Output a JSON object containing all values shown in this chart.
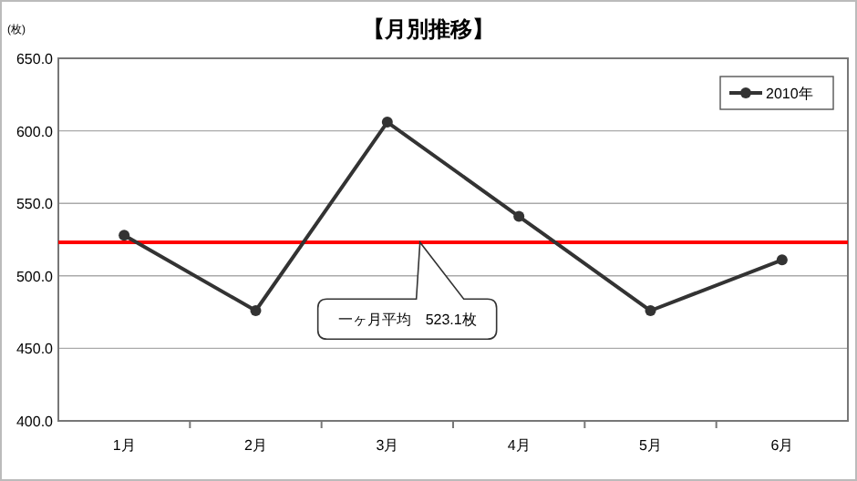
{
  "chart_data": {
    "type": "line",
    "title": "【月別推移】",
    "ylabel": "(枚)",
    "categories": [
      "1月",
      "2月",
      "3月",
      "4月",
      "5月",
      "6月"
    ],
    "series": [
      {
        "name": "2010年",
        "color": "#333333",
        "values": [
          528,
          476,
          606,
          541,
          476,
          511
        ]
      }
    ],
    "ylim": [
      400,
      650
    ],
    "yticks": [
      {
        "value": 400,
        "label": "400.0"
      },
      {
        "value": 450,
        "label": "450.0"
      },
      {
        "value": 500,
        "label": "500.0"
      },
      {
        "value": 550,
        "label": "550.0"
      },
      {
        "value": 600,
        "label": "600.0"
      },
      {
        "value": 650,
        "label": "650.0"
      }
    ],
    "ref_lines": [
      {
        "axis": "y",
        "value": 523.1,
        "color": "#ff0000"
      }
    ],
    "annotations": [
      "一ヶ月平均　523.1枚"
    ],
    "grid": "y",
    "legend": "top right",
    "marker": "circle",
    "line_style": "solid"
  }
}
